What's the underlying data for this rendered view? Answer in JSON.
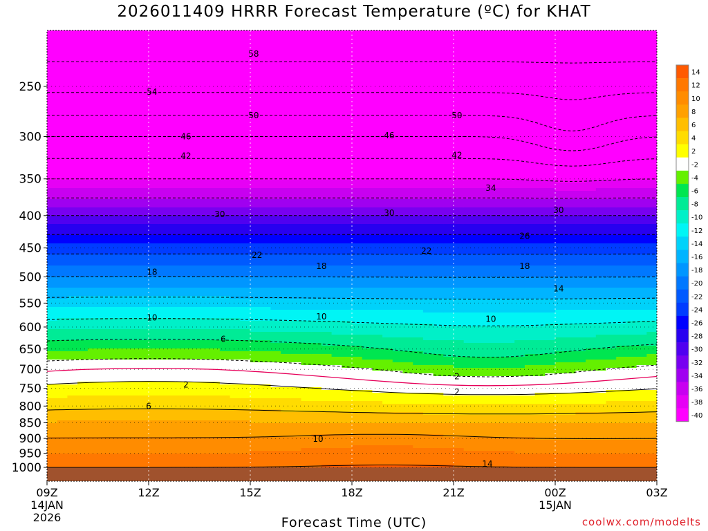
{
  "chart_data": {
    "type": "heatmap",
    "title": "2026011409 HRRR Forecast Temperature (ºC) for KHAT",
    "xlabel": "Forecast Time (UTC)",
    "ylabel": "",
    "credit": "coolwx.com/modelts",
    "x_ticks": [
      {
        "hour": 0,
        "label": "09Z",
        "date": "14JAN",
        "year": "2026"
      },
      {
        "hour": 3,
        "label": "12Z",
        "date": "",
        "year": ""
      },
      {
        "hour": 6,
        "label": "15Z",
        "date": "",
        "year": ""
      },
      {
        "hour": 9,
        "label": "18Z",
        "date": "",
        "year": ""
      },
      {
        "hour": 12,
        "label": "21Z",
        "date": "",
        "year": ""
      },
      {
        "hour": 15,
        "label": "00Z",
        "date": "15JAN",
        "year": ""
      },
      {
        "hour": 18,
        "label": "03Z",
        "date": "",
        "year": ""
      }
    ],
    "x_range": [
      0,
      18
    ],
    "y_ticks": [
      250,
      300,
      350,
      400,
      450,
      500,
      550,
      600,
      650,
      700,
      750,
      800,
      850,
      900,
      950,
      1000
    ],
    "y_range_hPa": [
      1030,
      200
    ],
    "colorbar": {
      "levels": [
        14,
        12,
        10,
        8,
        6,
        4,
        2,
        -2,
        -4,
        -6,
        -8,
        -10,
        -12,
        -14,
        -16,
        -18,
        -20,
        -22,
        -24,
        -26,
        -28,
        -30,
        -32,
        -34,
        -36,
        -38,
        -40
      ],
      "colors": [
        "#ff5a00",
        "#ff7800",
        "#ff8c00",
        "#ffa000",
        "#ffbe00",
        "#ffdc00",
        "#ffff00",
        "#ffffff",
        "#64f000",
        "#00e650",
        "#00eb96",
        "#00f0c8",
        "#00f5f5",
        "#00d2fa",
        "#00b4ff",
        "#0096ff",
        "#0078ff",
        "#005aff",
        "#003cff",
        "#0000ff",
        "#2800f0",
        "#5000f0",
        "#7800f0",
        "#a000f0",
        "#c800f0",
        "#e600f5",
        "#ff00ff"
      ]
    },
    "freezing_line_color": "#e6005a",
    "ground_color": "#a0522d",
    "profile_levels_hPa": [
      200,
      250,
      300,
      350,
      400,
      450,
      500,
      550,
      600,
      650,
      700,
      750,
      800,
      850,
      900,
      950,
      1000
    ],
    "temperature_profile_C": [
      -62,
      -55,
      -46,
      -38,
      -30,
      -23,
      -18,
      -13,
      -9,
      -5,
      -1,
      2,
      5,
      8,
      10,
      12,
      14
    ],
    "contour_labels": [
      {
        "value": "58",
        "hour": 6.1,
        "p": 222
      },
      {
        "value": "54",
        "hour": 3.1,
        "p": 255
      },
      {
        "value": "50",
        "hour": 6.1,
        "p": 278
      },
      {
        "value": "50",
        "hour": 12.1,
        "p": 278
      },
      {
        "value": "46",
        "hour": 4.1,
        "p": 300
      },
      {
        "value": "46",
        "hour": 10.1,
        "p": 299
      },
      {
        "value": "42",
        "hour": 4.1,
        "p": 322
      },
      {
        "value": "42",
        "hour": 12.1,
        "p": 321
      },
      {
        "value": "34",
        "hour": 13.1,
        "p": 362
      },
      {
        "value": "30",
        "hour": 5.1,
        "p": 398
      },
      {
        "value": "30",
        "hour": 10.1,
        "p": 396
      },
      {
        "value": "30",
        "hour": 15.1,
        "p": 392
      },
      {
        "value": "26",
        "hour": 14.1,
        "p": 431
      },
      {
        "value": "22",
        "hour": 6.2,
        "p": 462
      },
      {
        "value": "22",
        "hour": 11.2,
        "p": 455
      },
      {
        "value": "18",
        "hour": 3.1,
        "p": 491
      },
      {
        "value": "18",
        "hour": 8.1,
        "p": 481
      },
      {
        "value": "18",
        "hour": 14.1,
        "p": 481
      },
      {
        "value": "14",
        "hour": 15.1,
        "p": 522
      },
      {
        "value": "10",
        "hour": 3.1,
        "p": 580
      },
      {
        "value": "10",
        "hour": 8.1,
        "p": 578
      },
      {
        "value": "10",
        "hour": 13.1,
        "p": 583
      },
      {
        "value": "6",
        "hour": 5.2,
        "p": 627
      },
      {
        "value": "2",
        "hour": 12.1,
        "p": 718
      },
      {
        "value": "2",
        "hour": 4.1,
        "p": 740
      },
      {
        "value": "2",
        "hour": 12.1,
        "p": 760
      },
      {
        "value": "6",
        "hour": 3.0,
        "p": 800
      },
      {
        "value": "10",
        "hour": 8.0,
        "p": 902
      },
      {
        "value": "14",
        "hour": 13.0,
        "p": 988
      }
    ]
  }
}
